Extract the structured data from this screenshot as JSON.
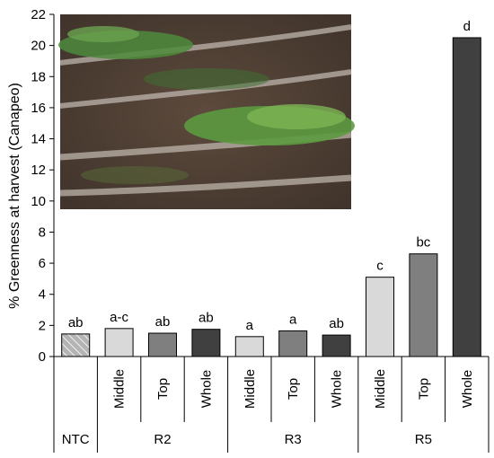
{
  "chart_data": {
    "type": "bar",
    "title": "",
    "ylabel": "% Greenness at harvest (Canapeo)",
    "xlabel": "",
    "ylim": [
      0,
      22
    ],
    "yticks": [
      0,
      2,
      4,
      6,
      8,
      10,
      12,
      14,
      16,
      18,
      20,
      22
    ],
    "grid": false,
    "legend": "none",
    "bars": [
      {
        "group": "NTC",
        "label": "",
        "value": 1.45,
        "letter": "ab",
        "fill": "#b4b4b4",
        "pattern": "hatched"
      },
      {
        "group": "R2",
        "label": "Middle",
        "value": 1.8,
        "letter": "a-c",
        "fill": "#d9d9d9"
      },
      {
        "group": "R2",
        "label": "Top",
        "value": 1.5,
        "letter": "ab",
        "fill": "#7f7f7f"
      },
      {
        "group": "R2",
        "label": "Whole",
        "value": 1.75,
        "letter": "ab",
        "fill": "#404040"
      },
      {
        "group": "R3",
        "label": "Middle",
        "value": 1.28,
        "letter": "a",
        "fill": "#d9d9d9"
      },
      {
        "group": "R3",
        "label": "Top",
        "value": 1.65,
        "letter": "a",
        "fill": "#7f7f7f"
      },
      {
        "group": "R3",
        "label": "Whole",
        "value": 1.38,
        "letter": "ab",
        "fill": "#404040"
      },
      {
        "group": "R5",
        "label": "Middle",
        "value": 5.1,
        "letter": "c",
        "fill": "#d9d9d9"
      },
      {
        "group": "R5",
        "label": "Top",
        "value": 6.6,
        "letter": "bc",
        "fill": "#7f7f7f"
      },
      {
        "group": "R5",
        "label": "Whole",
        "value": 20.5,
        "letter": "d",
        "fill": "#404040"
      }
    ],
    "groups": [
      "NTC",
      "R2",
      "R3",
      "R5"
    ],
    "inset": "aerial photo of field plots"
  }
}
